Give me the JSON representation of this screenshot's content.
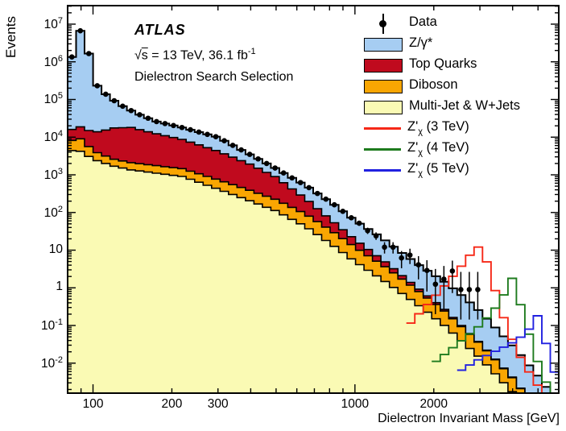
{
  "annotation": {
    "experiment": "ATLAS",
    "sqrt_symbol": "√",
    "sqrt_arg": "s",
    "energy_lumi": " = 13 TeV, 36.1 fb",
    "lumi_sup": "-1",
    "selection": "Dielectron Search Selection"
  },
  "axes": {
    "x": {
      "label": "Dielectron Invariant Mass [GeV]",
      "tick_values": [
        100,
        200,
        300,
        1000,
        2000
      ],
      "min": 80,
      "max": 6000,
      "scale": "log"
    },
    "y": {
      "label": "Events",
      "tick_exponents": [
        7,
        6,
        5,
        4,
        3,
        2,
        1,
        0,
        -1,
        -2
      ],
      "min": 0.0016,
      "max": 31000000,
      "scale": "log"
    }
  },
  "legend": {
    "items": [
      {
        "id": "data",
        "swatch": "marker",
        "color": "#000000",
        "main": "Data",
        "sub": "",
        "suffix": ""
      },
      {
        "id": "zgamma",
        "swatch": "box",
        "color": "#a6cdf2",
        "main": "Z/γ*",
        "sub": "",
        "suffix": ""
      },
      {
        "id": "top",
        "swatch": "box",
        "color": "#c00a1e",
        "main": "Top Quarks",
        "sub": "",
        "suffix": ""
      },
      {
        "id": "diboson",
        "swatch": "box",
        "color": "#f9a602",
        "main": "Diboson",
        "sub": "",
        "suffix": ""
      },
      {
        "id": "multijet",
        "swatch": "box",
        "color": "#fafab4",
        "main": "Multi-Jet & W+Jets",
        "sub": "",
        "suffix": ""
      },
      {
        "id": "zp3",
        "swatch": "line",
        "color": "#f62817",
        "main": "Z'",
        "sub": "χ",
        "suffix": " (3 TeV)"
      },
      {
        "id": "zp4",
        "swatch": "line",
        "color": "#1e7b1e",
        "main": "Z'",
        "sub": "χ",
        "suffix": " (4 TeV)"
      },
      {
        "id": "zp5",
        "swatch": "line",
        "color": "#2121e0",
        "main": "Z'",
        "sub": "χ",
        "suffix": " (5 TeV)"
      }
    ]
  },
  "chart_data": {
    "type": "area",
    "subtype": "stacked-log-log-histogram",
    "title": "ATLAS dielectron search selection invariant mass spectrum",
    "xlabel": "Dielectron Invariant Mass [GeV]",
    "ylabel": "Events",
    "xlim": [
      80,
      6000
    ],
    "ylim": [
      0.0016,
      31000000
    ],
    "grid": false,
    "legend_position": "top-right",
    "n_bins": 58,
    "stack_order": [
      "multijet_wjets",
      "diboson",
      "top_quarks",
      "z_gamma"
    ],
    "signal_order": [
      "zprime_3tev",
      "zprime_4tev",
      "zprime_5tev"
    ],
    "series": {
      "multijet_wjets": {
        "label": "Multi-Jet & W+Jets",
        "color": "#fafab4",
        "anchors": [
          [
            80,
            4500
          ],
          [
            90,
            4200
          ],
          [
            100,
            2600
          ],
          [
            120,
            1700
          ],
          [
            140,
            1350
          ],
          [
            220,
            900
          ],
          [
            300,
            420
          ],
          [
            400,
            200
          ],
          [
            500,
            110
          ],
          [
            650,
            42
          ],
          [
            830,
            13
          ],
          [
            1000,
            5
          ],
          [
            1300,
            1.5
          ],
          [
            1700,
            0.4
          ],
          [
            2200,
            0.1
          ],
          [
            3000,
            0.014
          ],
          [
            4000,
            0.0017
          ],
          [
            5000,
            0.00022
          ],
          [
            6000,
            3e-05
          ]
        ]
      },
      "diboson": {
        "label": "Diboson",
        "color": "#f9a602",
        "anchors": [
          [
            80,
            3000
          ],
          [
            88,
            5500
          ],
          [
            95,
            3000
          ],
          [
            100,
            1700
          ],
          [
            120,
            900
          ],
          [
            140,
            750
          ],
          [
            220,
            550
          ],
          [
            300,
            320
          ],
          [
            400,
            180
          ],
          [
            500,
            110
          ],
          [
            650,
            48
          ],
          [
            830,
            17
          ],
          [
            1000,
            7
          ],
          [
            1300,
            2.2
          ],
          [
            1700,
            0.55
          ],
          [
            2200,
            0.14
          ],
          [
            3000,
            0.019
          ],
          [
            4000,
            0.0023
          ],
          [
            5000,
            0.0003
          ],
          [
            6000,
            4e-05
          ]
        ]
      },
      "top_quarks": {
        "label": "Top Quarks",
        "color": "#c00a1e",
        "anchors": [
          [
            80,
            7000
          ],
          [
            90,
            10000
          ],
          [
            100,
            9000
          ],
          [
            120,
            15000
          ],
          [
            140,
            16000
          ],
          [
            170,
            11000
          ],
          [
            220,
            7200
          ],
          [
            300,
            3500
          ],
          [
            400,
            1500
          ],
          [
            500,
            650
          ],
          [
            650,
            140
          ],
          [
            830,
            25
          ],
          [
            1000,
            7
          ],
          [
            1300,
            1.3
          ],
          [
            1700,
            0.16
          ],
          [
            2200,
            0.025
          ],
          [
            3000,
            0.0015
          ],
          [
            4000,
            0.00015
          ],
          [
            6000,
            2e-06
          ]
        ]
      },
      "z_gamma": {
        "label": "Z/γ*",
        "color": "#a6cdf2",
        "anchors": [
          [
            80,
            900000
          ],
          [
            84,
            1500000
          ],
          [
            88,
            6000000
          ],
          [
            91,
            7400000
          ],
          [
            94,
            7400000
          ],
          [
            97,
            1100000
          ],
          [
            100,
            300000
          ],
          [
            108,
            155000
          ],
          [
            118,
            85000
          ],
          [
            130,
            48000
          ],
          [
            145,
            27000
          ],
          [
            160,
            19000
          ],
          [
            172,
            14000
          ],
          [
            220,
            9200
          ],
          [
            300,
            5700
          ],
          [
            400,
            1500
          ],
          [
            500,
            600
          ],
          [
            650,
            290
          ],
          [
            830,
            110
          ],
          [
            1000,
            42
          ],
          [
            1200,
            20
          ],
          [
            1500,
            6.6
          ],
          [
            1800,
            2.75
          ],
          [
            2200,
            1.18
          ],
          [
            2600,
            0.49
          ],
          [
            3000,
            0.2
          ],
          [
            3600,
            0.054
          ],
          [
            4200,
            0.017
          ],
          [
            5000,
            0.004
          ],
          [
            6000,
            0.00075
          ]
        ]
      },
      "zprime_3tev": {
        "label": "Z'χ (3 TeV)",
        "color": "#f62817",
        "anchors": [
          [
            1600,
            0.1
          ],
          [
            2000,
            0.55
          ],
          [
            2300,
            1.6
          ],
          [
            2500,
            3.2
          ],
          [
            2700,
            6.0
          ],
          [
            2850,
            11.5
          ],
          [
            3050,
            12.5
          ],
          [
            3250,
            3.2
          ],
          [
            3450,
            0.75
          ],
          [
            3700,
            0.16
          ],
          [
            4000,
            0.04
          ],
          [
            4400,
            0.01
          ],
          [
            5000,
            0.0025
          ],
          [
            6000,
            0.0006
          ]
        ]
      },
      "zprime_4tev": {
        "label": "Z'χ (4 TeV)",
        "color": "#1e7b1e",
        "anchors": [
          [
            2000,
            0.01
          ],
          [
            2500,
            0.035
          ],
          [
            3000,
            0.1
          ],
          [
            3400,
            0.26
          ],
          [
            3700,
            0.65
          ],
          [
            3900,
            1.6
          ],
          [
            4050,
            1.95
          ],
          [
            4250,
            0.45
          ],
          [
            4550,
            0.09
          ],
          [
            4800,
            0.022
          ],
          [
            5200,
            0.005
          ],
          [
            5800,
            0.001
          ]
        ]
      },
      "zprime_5tev": {
        "label": "Z'χ (5 TeV)",
        "color": "#2121e0",
        "anchors": [
          [
            2500,
            0.006
          ],
          [
            3000,
            0.013
          ],
          [
            3500,
            0.022
          ],
          [
            4000,
            0.035
          ],
          [
            4400,
            0.055
          ],
          [
            4700,
            0.09
          ],
          [
            4900,
            0.16
          ],
          [
            5080,
            0.21
          ],
          [
            5300,
            0.045
          ],
          [
            5600,
            0.012
          ],
          [
            6000,
            0.0025
          ]
        ]
      }
    },
    "data_points": {
      "label": "Data",
      "color": "#000000",
      "tracks_total_below": 1000,
      "points": [
        [
          1038,
          52
        ],
        [
          1118,
          33
        ],
        [
          1204,
          24
        ],
        [
          1297,
          12
        ],
        [
          1398,
          12
        ],
        [
          1506,
          6.2
        ],
        [
          1622,
          7.4
        ],
        [
          1748,
          4.1
        ],
        [
          1883,
          2.9
        ],
        [
          2029,
          1.25
        ],
        [
          2186,
          1.7
        ],
        [
          2355,
          2.8
        ],
        [
          2537,
          0.9
        ],
        [
          2733,
          0.9
        ],
        [
          2944,
          0.9
        ]
      ]
    }
  }
}
